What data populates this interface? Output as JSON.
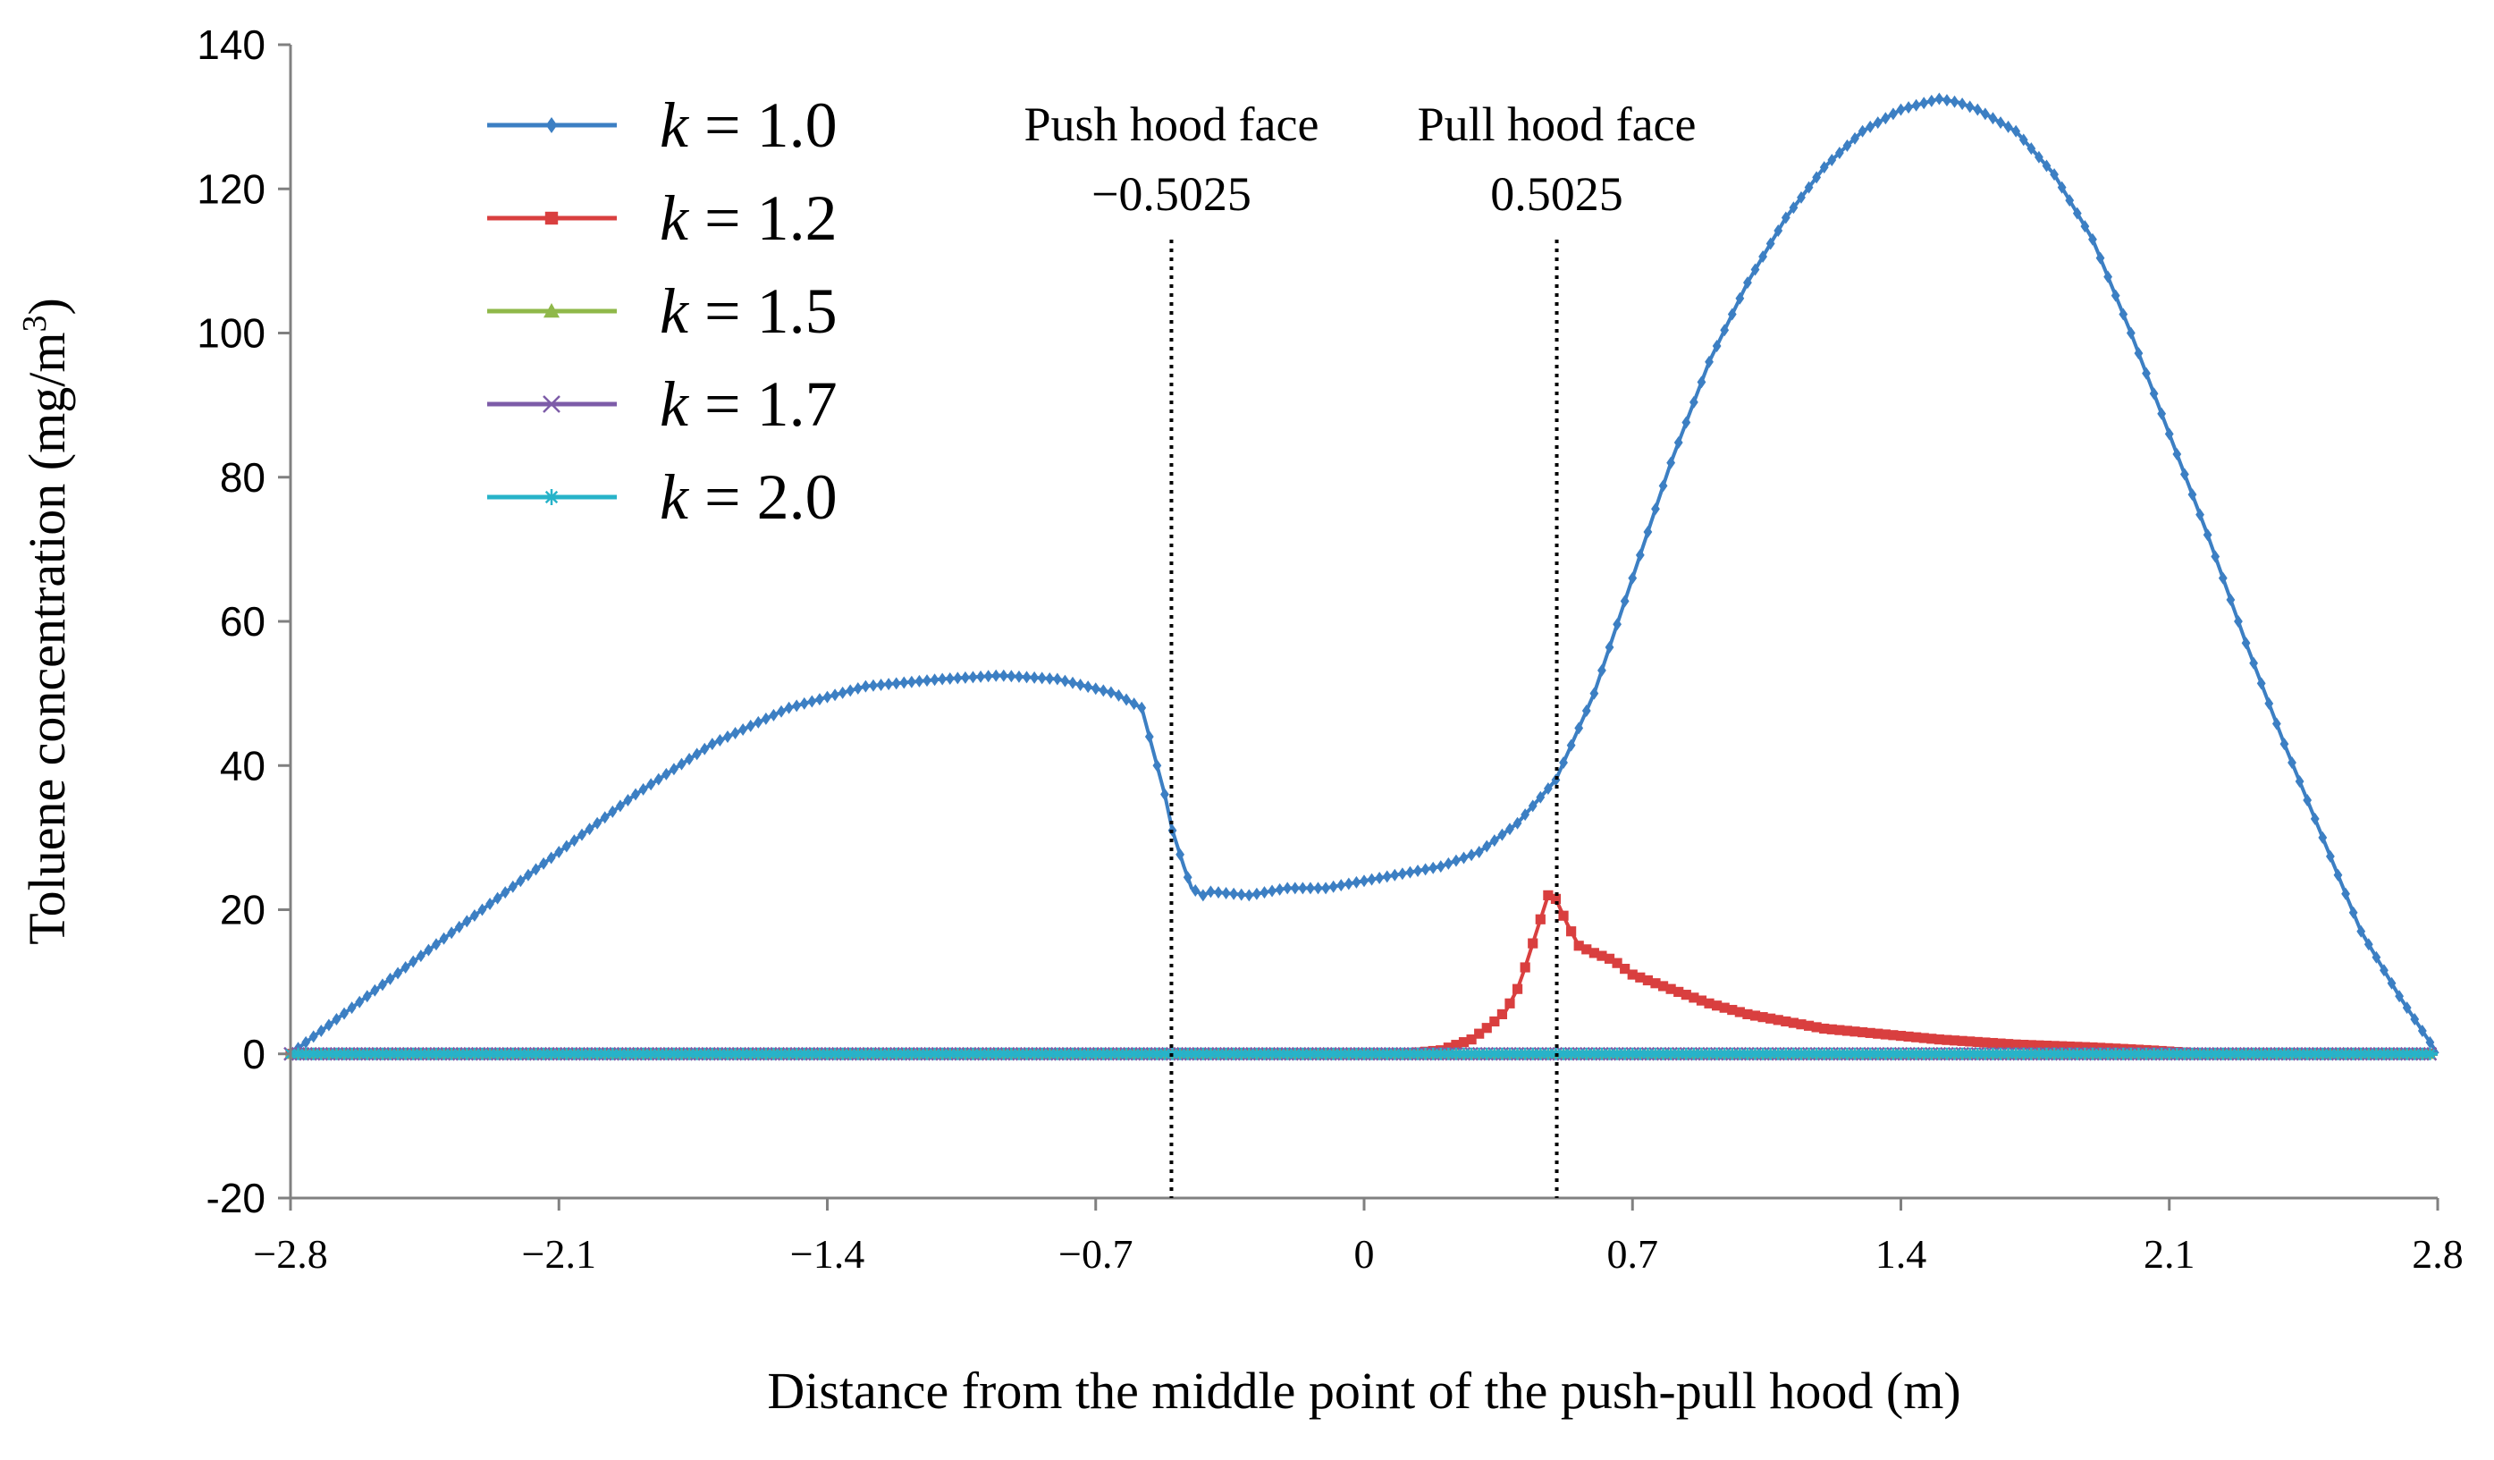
{
  "chart_data": {
    "type": "line",
    "title": "",
    "xlabel": "Distance from the middle point of the push-pull hood (m)",
    "ylabel_main": "Toluene concentration (mg/m",
    "ylabel_sup": "3",
    "ylabel_end": ")",
    "xlim": [
      -2.8,
      2.8
    ],
    "ylim": [
      -20,
      140
    ],
    "x_ticks": [
      -2.8,
      -2.1,
      -1.4,
      -0.7,
      0,
      0.7,
      1.4,
      2.1,
      2.8
    ],
    "x_tick_labels": [
      "−2.8",
      "−2.1",
      "−1.4",
      "−0.7",
      "0",
      "0.7",
      "1.4",
      "2.1",
      "2.8"
    ],
    "y_ticks": [
      -20,
      0,
      20,
      40,
      60,
      80,
      100,
      120,
      140
    ],
    "y_tick_labels": [
      "-20",
      "0",
      "20",
      "40",
      "60",
      "80",
      "100",
      "120",
      "140"
    ],
    "grid": false,
    "legend_position": "top-left",
    "annotations": [
      {
        "title": "Push hood face",
        "value_label": "−0.5025",
        "x": -0.5025
      },
      {
        "title": "Pull hood face",
        "value_label": "0.5025",
        "x": 0.5025
      }
    ],
    "series": [
      {
        "name": "k",
        "value_text": " = 1.0",
        "color": "#3c7fc3",
        "marker": "diamond",
        "x": [
          -2.8,
          -2.7,
          -2.5,
          -2.3,
          -2.1,
          -1.9,
          -1.7,
          -1.5,
          -1.3,
          -1.1,
          -0.95,
          -0.8,
          -0.65,
          -0.58,
          -0.55,
          -0.52,
          -0.5,
          -0.47,
          -0.45,
          -0.42,
          -0.4,
          -0.3,
          -0.2,
          -0.1,
          0,
          0.1,
          0.2,
          0.3,
          0.4,
          0.5,
          0.6,
          0.7,
          0.8,
          0.9,
          1.0,
          1.1,
          1.2,
          1.3,
          1.4,
          1.5,
          1.55,
          1.6,
          1.7,
          1.8,
          1.9,
          2.0,
          2.1,
          2.2,
          2.3,
          2.4,
          2.5,
          2.6,
          2.7,
          2.8
        ],
        "y": [
          0,
          4,
          12,
          20,
          28,
          36,
          43,
          48,
          51,
          52,
          52.5,
          52,
          50,
          48,
          42,
          36,
          31,
          26,
          23,
          22,
          22.5,
          22,
          23,
          23,
          24,
          25,
          26,
          28,
          32,
          38,
          50,
          66,
          82,
          96,
          107,
          116,
          123,
          128,
          131,
          132.5,
          132,
          131,
          128,
          122,
          113,
          100,
          86,
          72,
          57,
          43,
          30,
          17,
          8,
          0
        ]
      },
      {
        "name": "k",
        "value_text": " = 1.2",
        "color": "#d93f3f",
        "marker": "square",
        "x": [
          -2.8,
          0.1,
          0.2,
          0.28,
          0.33,
          0.37,
          0.4,
          0.42,
          0.45,
          0.48,
          0.5,
          0.53,
          0.56,
          0.6,
          0.65,
          0.7,
          0.8,
          0.9,
          1.0,
          1.1,
          1.2,
          1.3,
          1.4,
          1.5,
          1.7,
          1.9,
          2.05,
          2.2,
          2.8
        ],
        "y": [
          0,
          0,
          0.5,
          2,
          4,
          6,
          9,
          12,
          17,
          22,
          21.5,
          18,
          15,
          14,
          13,
          11,
          9,
          7,
          5.5,
          4.5,
          3.5,
          3,
          2.5,
          2,
          1.3,
          0.9,
          0.5,
          0,
          0
        ]
      },
      {
        "name": "k",
        "value_text": " = 1.5",
        "color": "#8fb84a",
        "marker": "triangle",
        "x": [
          -2.8,
          2.8
        ],
        "y": [
          0,
          0
        ]
      },
      {
        "name": "k",
        "value_text": " = 1.7",
        "color": "#7d5ca8",
        "marker": "x",
        "x": [
          -2.8,
          2.8
        ],
        "y": [
          0,
          0
        ]
      },
      {
        "name": "k",
        "value_text": " = 2.0",
        "color": "#27b3c9",
        "marker": "star",
        "x": [
          -2.8,
          2.8
        ],
        "y": [
          0,
          0
        ]
      }
    ]
  }
}
